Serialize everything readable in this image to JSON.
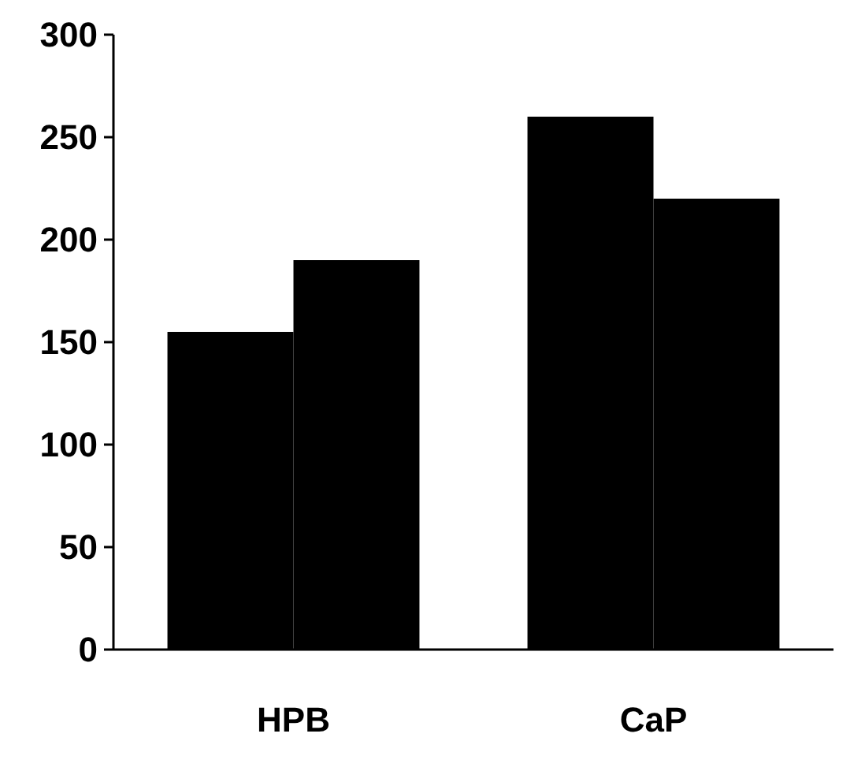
{
  "chart_data": {
    "type": "bar",
    "categories": [
      "HPB",
      "CaP"
    ],
    "series": [
      {
        "color": "#000000",
        "values": [
          155,
          260
        ]
      },
      {
        "color": "#000000",
        "values": [
          190,
          220
        ]
      }
    ],
    "ylim": [
      0,
      300
    ],
    "yticks": [
      0,
      50,
      100,
      150,
      200,
      250,
      300
    ],
    "grid": false
  }
}
